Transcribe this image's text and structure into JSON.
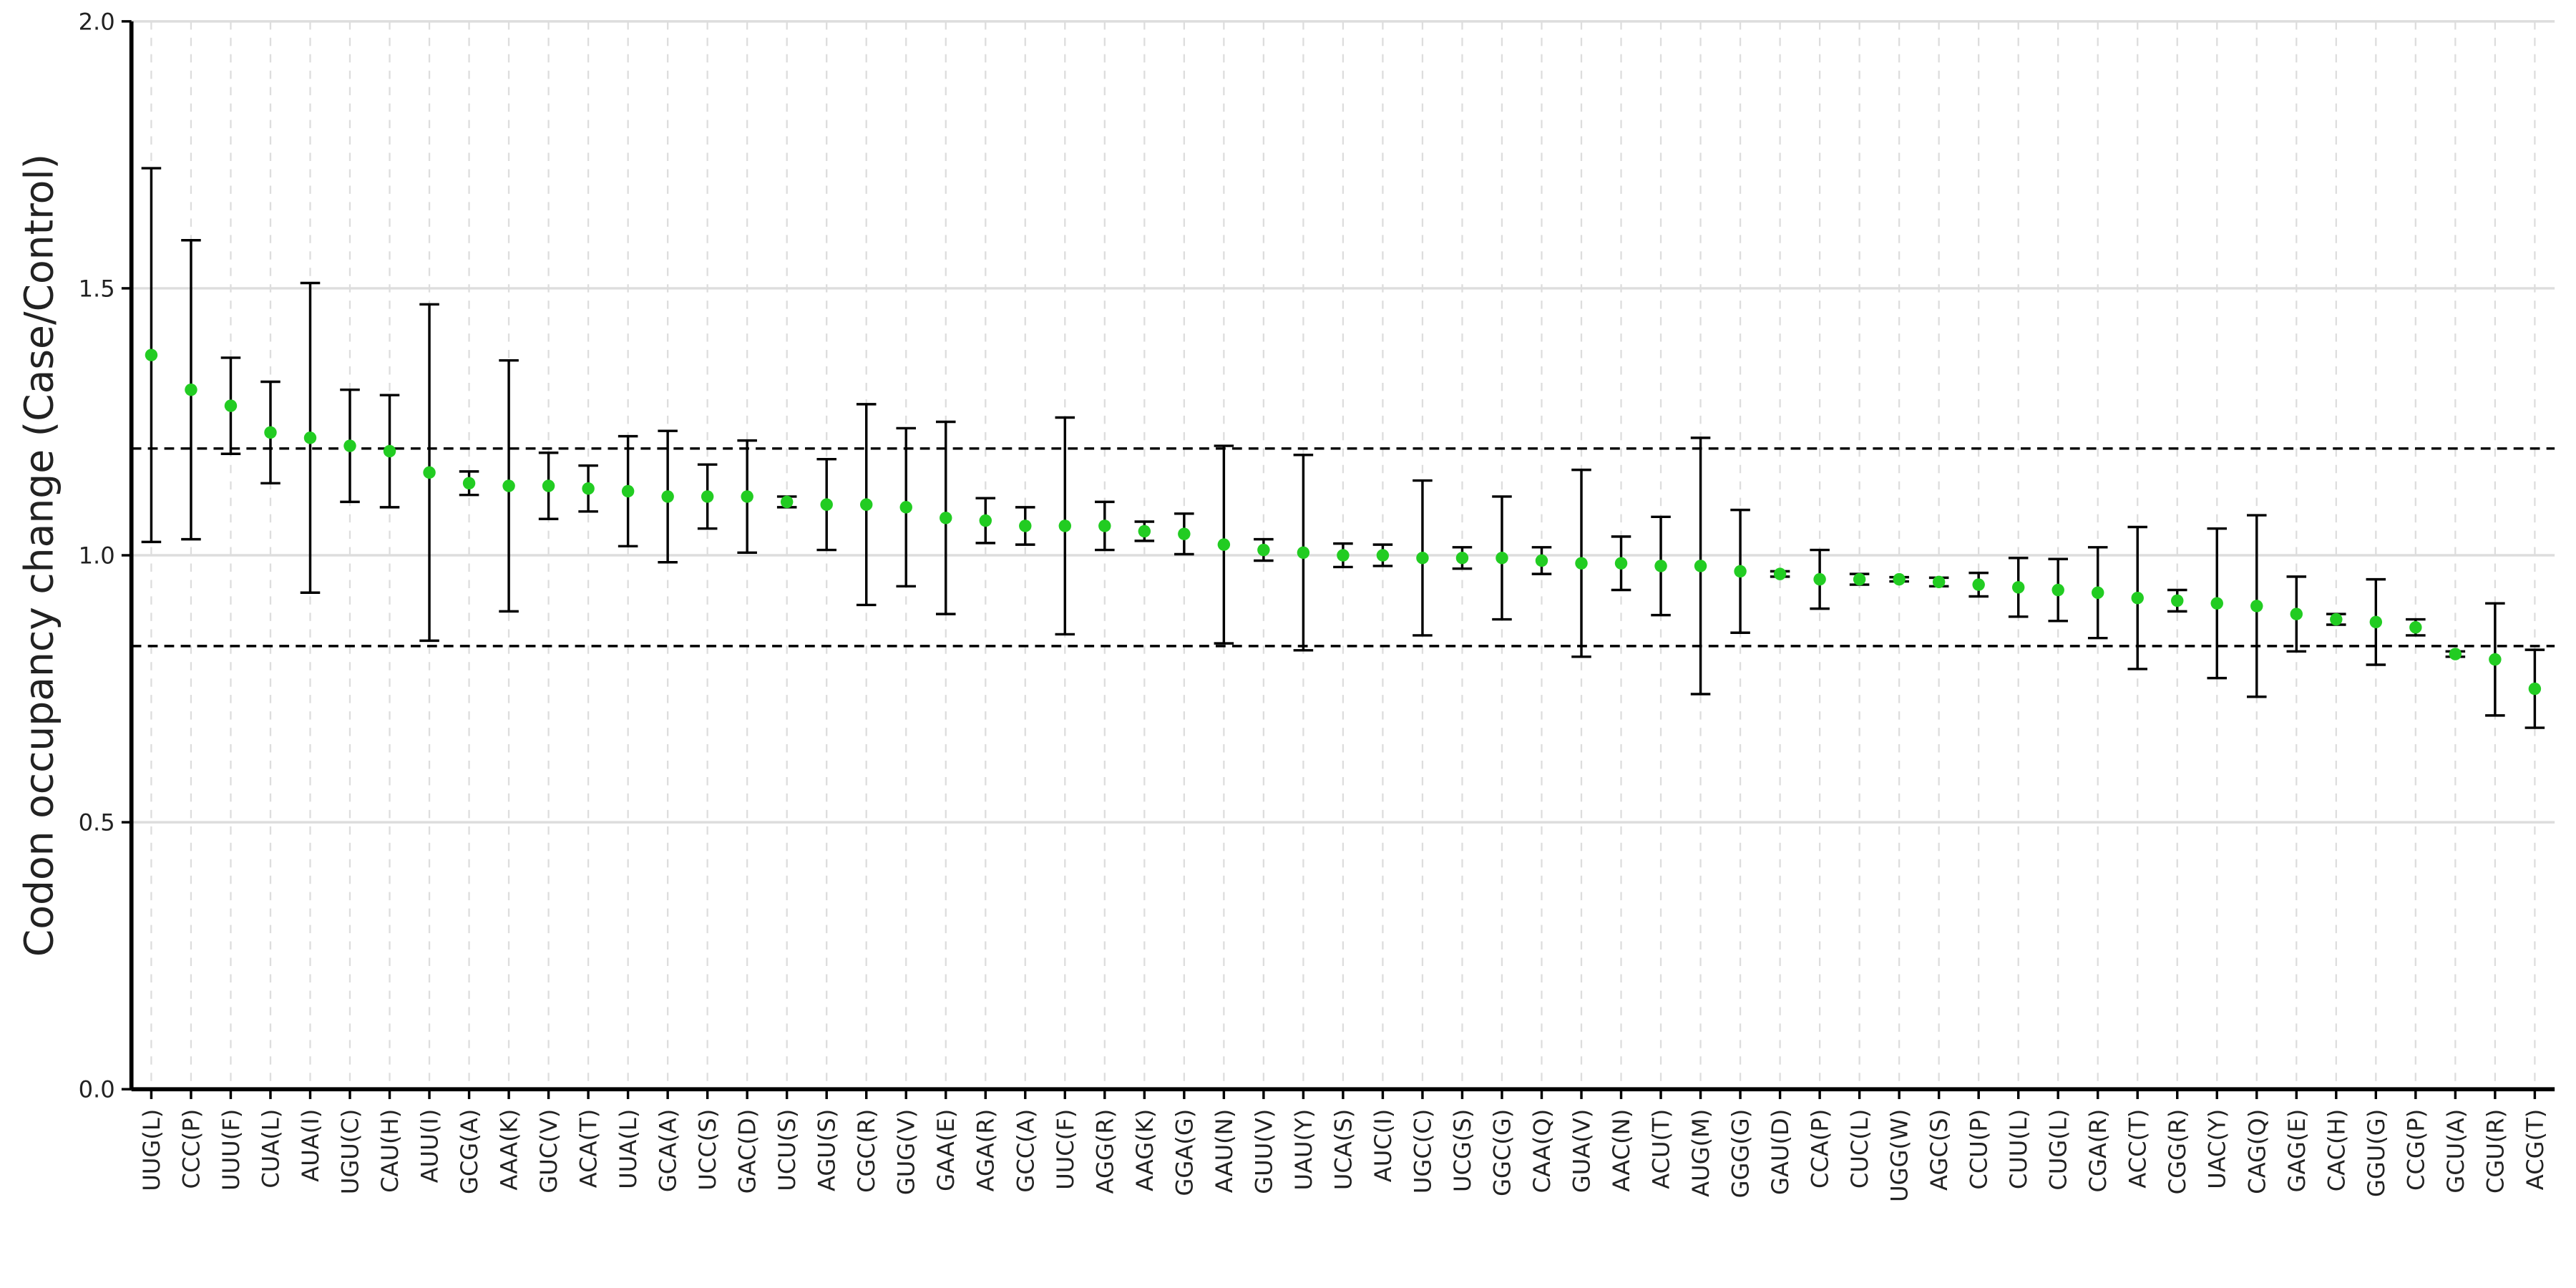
{
  "chart_data": {
    "type": "dot",
    "ylabel": "Codon occupancy change (Case/Control)",
    "categories": [
      "UUG(L)",
      "CCC(P)",
      "UUU(F)",
      "CUA(L)",
      "AUA(I)",
      "UGU(C)",
      "CAU(H)",
      "AUU(I)",
      "GCG(A)",
      "AAA(K)",
      "GUC(V)",
      "ACA(T)",
      "UUA(L)",
      "GCA(A)",
      "UCC(S)",
      "GAC(D)",
      "UCU(S)",
      "AGU(S)",
      "CGC(R)",
      "GUG(V)",
      "GAA(E)",
      "AGA(R)",
      "GCC(A)",
      "UUC(F)",
      "AGG(R)",
      "AAG(K)",
      "GGA(G)",
      "AAU(N)",
      "GUU(V)",
      "UAU(Y)",
      "UCA(S)",
      "AUC(I)",
      "UGC(C)",
      "UCG(S)",
      "GGC(G)",
      "CAA(Q)",
      "GUA(V)",
      "AAC(N)",
      "ACU(T)",
      "AUG(M)",
      "GGG(G)",
      "GAU(D)",
      "CCA(P)",
      "CUC(L)",
      "UGG(W)",
      "AGC(S)",
      "CCU(P)",
      "CUU(L)",
      "CUG(L)",
      "CGA(R)",
      "ACC(T)",
      "CGG(R)",
      "UAC(Y)",
      "CAG(Q)",
      "GAG(E)",
      "CAC(H)",
      "GGU(G)",
      "CCG(P)",
      "GCU(A)",
      "CGU(R)",
      "ACG(T)"
    ],
    "values": [
      1.375,
      1.31,
      1.28,
      1.23,
      1.22,
      1.205,
      1.195,
      1.155,
      1.135,
      1.13,
      1.13,
      1.125,
      1.12,
      1.11,
      1.11,
      1.11,
      1.1,
      1.095,
      1.095,
      1.09,
      1.07,
      1.065,
      1.055,
      1.055,
      1.055,
      1.045,
      1.04,
      1.02,
      1.01,
      1.005,
      1.0,
      1.0,
      0.995,
      0.995,
      0.995,
      0.99,
      0.985,
      0.985,
      0.98,
      0.98,
      0.97,
      0.965,
      0.955,
      0.955,
      0.955,
      0.95,
      0.945,
      0.94,
      0.935,
      0.93,
      0.92,
      0.915,
      0.91,
      0.905,
      0.89,
      0.88,
      0.875,
      0.865,
      0.815,
      0.805,
      0.75
    ],
    "errors": [
      0.35,
      0.28,
      0.09,
      0.095,
      0.29,
      0.105,
      0.105,
      0.315,
      0.022,
      0.235,
      0.062,
      0.043,
      0.103,
      0.123,
      0.06,
      0.105,
      0.01,
      0.085,
      0.188,
      0.148,
      0.18,
      0.042,
      0.035,
      0.203,
      0.045,
      0.018,
      0.038,
      0.185,
      0.02,
      0.183,
      0.022,
      0.02,
      0.145,
      0.02,
      0.115,
      0.025,
      0.175,
      0.05,
      0.092,
      0.24,
      0.115,
      0.005,
      0.055,
      0.01,
      0.004,
      0.008,
      0.022,
      0.055,
      0.058,
      0.085,
      0.133,
      0.02,
      0.14,
      0.17,
      0.07,
      0.01,
      0.08,
      0.015,
      0.005,
      0.105,
      0.073
    ],
    "color": "#22cc22",
    "ylim": [
      0,
      2.0
    ],
    "yticks": [
      {
        "value": 0,
        "label": "0.0"
      },
      {
        "value": 0.5,
        "label": "0.5"
      },
      {
        "value": 1,
        "label": "1.0"
      },
      {
        "value": 1.5,
        "label": "1.5"
      },
      {
        "value": 2,
        "label": "2.0"
      }
    ],
    "hlines": [
      1.2,
      0.83
    ],
    "grid": true
  }
}
